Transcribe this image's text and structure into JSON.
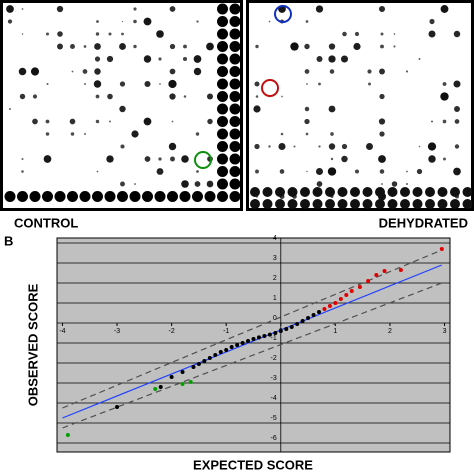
{
  "panel_labels": {
    "control": "CONTROL",
    "dehydrated": "DEHYDRATED",
    "b": "B"
  },
  "chart_data": {
    "type": "scatter",
    "y_label": "OBSERVED SCORE",
    "x_label": "EXPECTED SCORE",
    "xlim": [
      -4.1,
      3.1
    ],
    "ylim": [
      -6.45,
      4.25
    ],
    "xticks": [
      -4,
      -3,
      -2,
      -1,
      0,
      1,
      2,
      3
    ],
    "yticks": [
      -6,
      -5,
      -4,
      -3,
      -2,
      -1,
      0,
      1,
      2,
      3,
      4
    ],
    "grid": true,
    "background": "#c0c0c0",
    "series": [
      {
        "mode": "line",
        "dash": false,
        "color": "#2040ff",
        "x": [
          -4,
          2.95
        ],
        "values": [
          -4.75,
          2.9
        ]
      },
      {
        "mode": "line",
        "dash": true,
        "color": "#505050",
        "x": [
          -4,
          2.95
        ],
        "values": [
          -4.25,
          3.65
        ]
      },
      {
        "mode": "line",
        "dash": true,
        "color": "#505050",
        "x": [
          -4,
          2.95
        ],
        "values": [
          -5.25,
          2.0
        ]
      },
      {
        "mode": "markers",
        "color": "#000000",
        "x": [
          -3.0,
          -2.2,
          -2.0,
          -1.8,
          -1.6,
          -1.5,
          -1.4,
          -1.3,
          -1.2,
          -1.1,
          -1.0,
          -0.9,
          -0.8,
          -0.7,
          -0.6,
          -0.5,
          -0.4,
          -0.3,
          -0.2,
          -0.1,
          0.0,
          0.1,
          0.2,
          0.3,
          0.4,
          0.5,
          0.6,
          0.7
        ],
        "values": [
          -4.2,
          -3.2,
          -2.7,
          -2.45,
          -2.2,
          -2.05,
          -1.9,
          -1.75,
          -1.6,
          -1.45,
          -1.35,
          -1.2,
          -1.1,
          -1.0,
          -0.9,
          -0.8,
          -0.72,
          -0.65,
          -0.58,
          -0.5,
          -0.4,
          -0.3,
          -0.2,
          -0.05,
          0.1,
          0.25,
          0.4,
          0.55
        ]
      },
      {
        "mode": "markers",
        "color": "#e00000",
        "x": [
          0.8,
          0.9,
          1.0,
          1.1,
          1.2,
          1.3,
          1.45,
          1.6,
          1.75,
          1.9,
          2.2,
          2.95
        ],
        "values": [
          0.7,
          0.85,
          1.0,
          1.2,
          1.4,
          1.6,
          1.8,
          2.1,
          2.4,
          2.6,
          2.65,
          3.7
        ]
      },
      {
        "mode": "markers",
        "color": "#00a000",
        "x": [
          -3.9,
          -2.3,
          -1.8,
          -1.65
        ],
        "values": [
          -5.6,
          -3.3,
          -3.05,
          -2.95
        ]
      }
    ]
  }
}
